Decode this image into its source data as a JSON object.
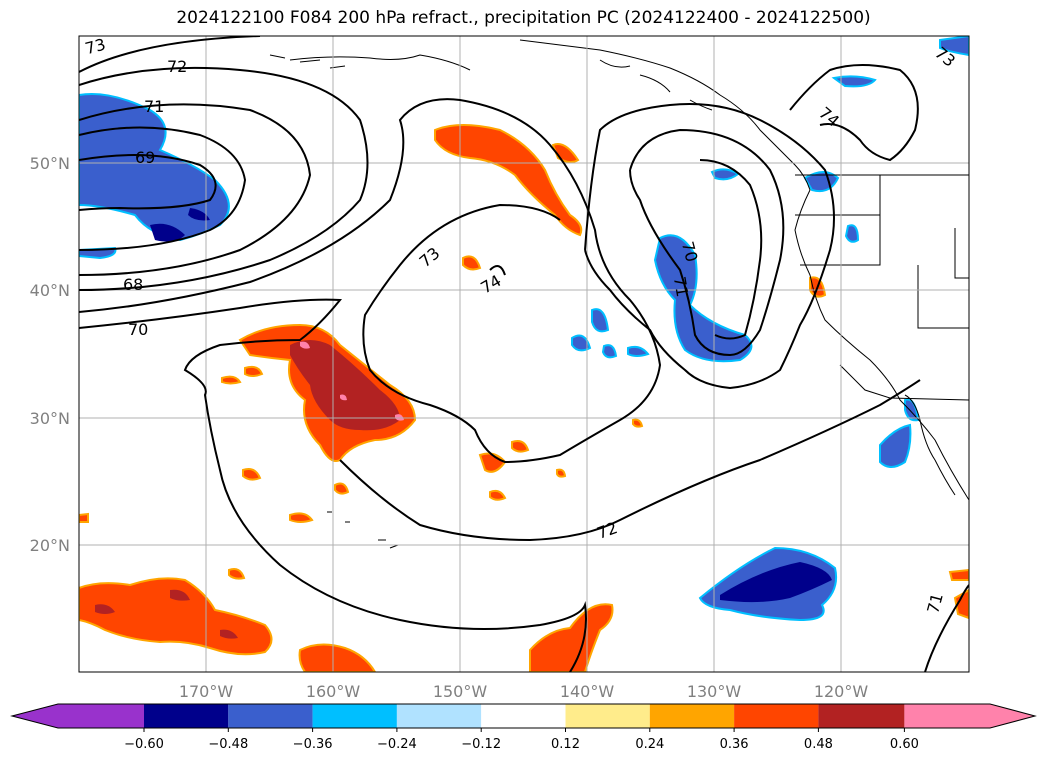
{
  "title": "2024122100 F084 200 hPa refract., precipitation PC (2024122400 - 2024122500)",
  "map": {
    "lon_range": [
      -180,
      -110
    ],
    "lat_range": [
      10,
      60
    ],
    "lon_ticks": [
      {
        "value": -170,
        "label": "170°W"
      },
      {
        "value": -160,
        "label": "160°W"
      },
      {
        "value": -150,
        "label": "150°W"
      },
      {
        "value": -140,
        "label": "140°W"
      },
      {
        "value": -130,
        "label": "130°W"
      },
      {
        "value": -120,
        "label": "120°W"
      }
    ],
    "lat_ticks": [
      {
        "value": 20,
        "label": "20°N"
      },
      {
        "value": 30,
        "label": "30°N"
      },
      {
        "value": 40,
        "label": "40°N"
      },
      {
        "value": 50,
        "label": "50°N"
      }
    ],
    "grid": true,
    "contour_labels": [
      "73",
      "72",
      "71",
      "69",
      "68",
      "70",
      "73",
      "74",
      "70",
      "71",
      "74",
      "73",
      "72",
      "71"
    ]
  },
  "colorbar": {
    "colors": [
      "#9932cc",
      "#00008b",
      "#3a5fcd",
      "#00bfff",
      "#b0e2ff",
      "#ffffff",
      "#ffec8b",
      "#ffa500",
      "#ff4500",
      "#b22222",
      "#ff82ab"
    ],
    "tick_labels": [
      "−0.60",
      "−0.48",
      "−0.36",
      "−0.24",
      "−0.12",
      "0.12",
      "0.24",
      "0.36",
      "0.48",
      "0.60"
    ]
  }
}
